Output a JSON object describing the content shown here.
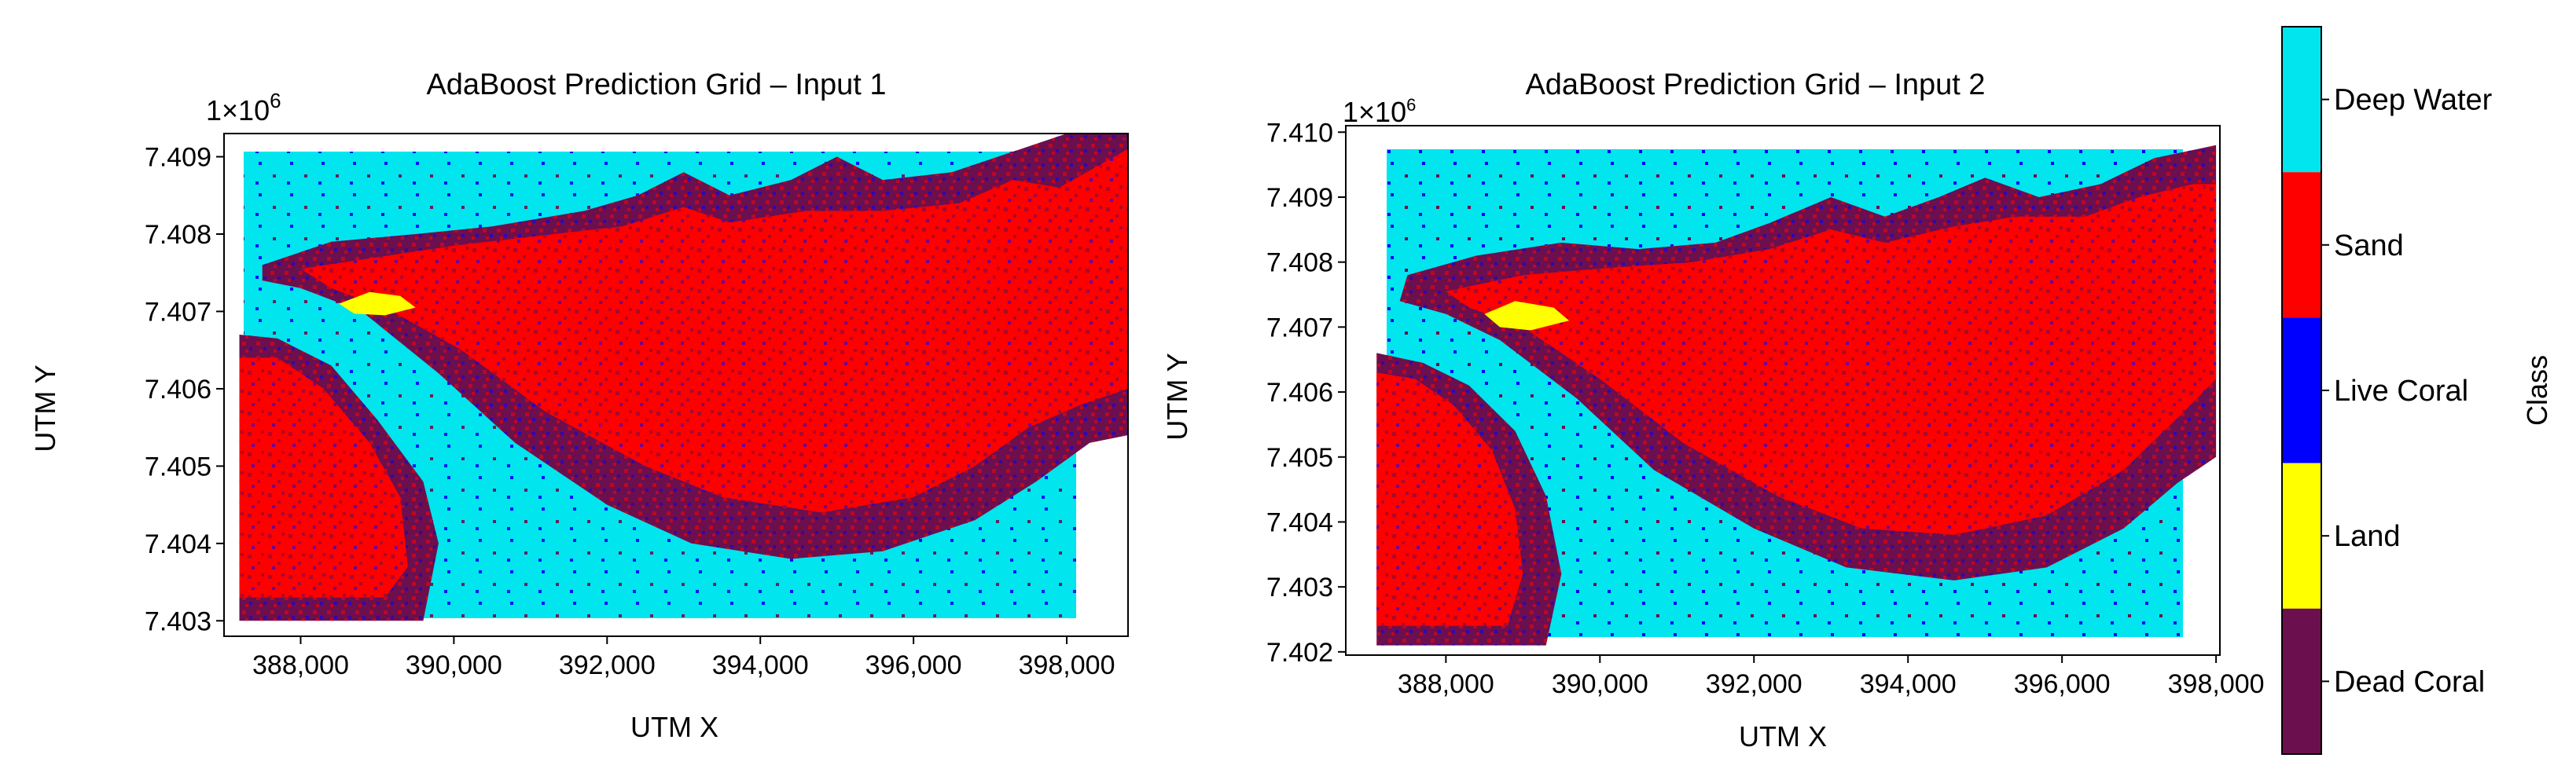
{
  "classes": {
    "labels": [
      "Dead Coral",
      "Land",
      "Live Coral",
      "Sand",
      "Deep Water"
    ],
    "colors": [
      "#6b0f4e",
      "#ffff00",
      "#0000ff",
      "#ff0000",
      "#00e5ee"
    ],
    "colorbar_label": "Class"
  },
  "chart_data": [
    {
      "type": "heatmap",
      "title": "AdaBoost Prediction Grid – Input 1",
      "xlabel": "UTM X",
      "ylabel": "UTM Y",
      "y_offset_text": "1×10",
      "y_offset_exp": "6",
      "xlim": [
        387000,
        398800
      ],
      "ylim": [
        7402.8,
        7409.3
      ],
      "data_extent_x": [
        387200,
        398800
      ],
      "data_extent_y": [
        7403.0,
        7409.4
      ],
      "x_ticks": [
        388000,
        390000,
        392000,
        394000,
        396000,
        398000
      ],
      "x_tick_labels": [
        "388,000",
        "390,000",
        "392,000",
        "394,000",
        "396,000",
        "398,000"
      ],
      "y_ticks": [
        7403,
        7404,
        7405,
        7406,
        7407,
        7408,
        7409
      ],
      "y_tick_labels": [
        "7.403",
        "7.404",
        "7.405",
        "7.406",
        "7.407",
        "7.408",
        "7.409"
      ],
      "background_class": "Deep Water",
      "regions": [
        {
          "class": "Dead Coral",
          "name": "main-reef-rim",
          "outline": [
            [
              387500,
              7407.6
            ],
            [
              388400,
              7407.9
            ],
            [
              389500,
              7408.0
            ],
            [
              390500,
              7408.1
            ],
            [
              391700,
              7408.3
            ],
            [
              392400,
              7408.5
            ],
            [
              393000,
              7408.8
            ],
            [
              393600,
              7408.5
            ],
            [
              394400,
              7408.7
            ],
            [
              395000,
              7409.0
            ],
            [
              395600,
              7408.7
            ],
            [
              396500,
              7408.8
            ],
            [
              397400,
              7409.1
            ],
            [
              398000,
              7409.3
            ],
            [
              398800,
              7409.3
            ],
            [
              398800,
              7405.4
            ],
            [
              398300,
              7405.3
            ],
            [
              397600,
              7404.8
            ],
            [
              396800,
              7404.3
            ],
            [
              395600,
              7403.9
            ],
            [
              394400,
              7403.8
            ],
            [
              393100,
              7404.0
            ],
            [
              392000,
              7404.5
            ],
            [
              390800,
              7405.3
            ],
            [
              389800,
              7406.2
            ],
            [
              388800,
              7407.0
            ],
            [
              388000,
              7407.3
            ],
            [
              387500,
              7407.4
            ]
          ]
        },
        {
          "class": "Sand",
          "name": "main-reef-interior",
          "outline": [
            [
              388000,
              7407.55
            ],
            [
              389000,
              7407.7
            ],
            [
              390000,
              7407.85
            ],
            [
              391300,
              7408.0
            ],
            [
              392200,
              7408.1
            ],
            [
              393000,
              7408.35
            ],
            [
              393600,
              7408.15
            ],
            [
              394600,
              7408.3
            ],
            [
              395600,
              7408.3
            ],
            [
              396600,
              7408.4
            ],
            [
              397300,
              7408.7
            ],
            [
              397900,
              7408.6
            ],
            [
              398800,
              7409.1
            ],
            [
              398800,
              7406.0
            ],
            [
              398200,
              7405.8
            ],
            [
              397500,
              7405.5
            ],
            [
              396800,
              7405.0
            ],
            [
              396000,
              7404.6
            ],
            [
              394800,
              7404.4
            ],
            [
              393500,
              7404.6
            ],
            [
              392500,
              7405.0
            ],
            [
              391200,
              7405.7
            ],
            [
              390100,
              7406.5
            ],
            [
              389200,
              7407.0
            ],
            [
              388400,
              7407.3
            ]
          ]
        },
        {
          "class": "Land",
          "name": "island",
          "outline": [
            [
              388500,
              7407.1
            ],
            [
              388900,
              7407.25
            ],
            [
              389300,
              7407.2
            ],
            [
              389500,
              7407.05
            ],
            [
              389100,
              7406.95
            ],
            [
              388700,
              7406.97
            ]
          ]
        },
        {
          "class": "Dead Coral",
          "name": "southwest-reef-rim",
          "outline": [
            [
              387200,
              7406.7
            ],
            [
              387700,
              7406.65
            ],
            [
              388400,
              7406.3
            ],
            [
              389000,
              7405.6
            ],
            [
              389600,
              7404.8
            ],
            [
              389800,
              7404.0
            ],
            [
              389600,
              7403.0
            ],
            [
              387200,
              7403.0
            ]
          ]
        },
        {
          "class": "Sand",
          "name": "southwest-reef-interior",
          "outline": [
            [
              387200,
              7406.4
            ],
            [
              387700,
              7406.4
            ],
            [
              388300,
              7406.0
            ],
            [
              388900,
              7405.3
            ],
            [
              389300,
              7404.6
            ],
            [
              389400,
              7403.7
            ],
            [
              389100,
              7403.3
            ],
            [
              387200,
              7403.3
            ]
          ]
        }
      ]
    },
    {
      "type": "heatmap",
      "title": "AdaBoost Prediction Grid – Input 2",
      "xlabel": "UTM X",
      "ylabel": "UTM Y",
      "y_offset_text": "1×10",
      "y_offset_exp": "6",
      "xlim": [
        386700,
        398050
      ],
      "ylim": [
        7401.95,
        7410.1
      ],
      "data_extent_x": [
        387100,
        398000
      ],
      "data_extent_y": [
        7402.1,
        7409.9
      ],
      "x_ticks": [
        388000,
        390000,
        392000,
        394000,
        396000,
        398000
      ],
      "x_tick_labels": [
        "388,000",
        "390,000",
        "392,000",
        "394,000",
        "396,000",
        "398,000"
      ],
      "y_ticks": [
        7402,
        7403,
        7404,
        7405,
        7406,
        7407,
        7408,
        7409,
        7410
      ],
      "y_tick_labels": [
        "7.402",
        "7.403",
        "7.404",
        "7.405",
        "7.406",
        "7.407",
        "7.408",
        "7.409",
        "7.410"
      ],
      "background_class": "Deep Water",
      "regions": [
        {
          "class": "Dead Coral",
          "name": "main-reef-rim",
          "outline": [
            [
              387500,
              7407.8
            ],
            [
              388400,
              7408.1
            ],
            [
              389500,
              7408.3
            ],
            [
              390500,
              7408.2
            ],
            [
              391500,
              7408.3
            ],
            [
              392200,
              7408.6
            ],
            [
              393000,
              7409.0
            ],
            [
              393700,
              7408.7
            ],
            [
              394400,
              7409.0
            ],
            [
              395000,
              7409.3
            ],
            [
              395700,
              7409.0
            ],
            [
              396500,
              7409.2
            ],
            [
              397200,
              7409.6
            ],
            [
              398000,
              7409.8
            ],
            [
              398000,
              7405.0
            ],
            [
              397500,
              7404.6
            ],
            [
              396800,
              7403.9
            ],
            [
              395800,
              7403.3
            ],
            [
              394600,
              7403.1
            ],
            [
              393200,
              7403.3
            ],
            [
              392000,
              7403.9
            ],
            [
              390700,
              7404.8
            ],
            [
              389700,
              7405.9
            ],
            [
              388700,
              7406.8
            ],
            [
              388000,
              7407.2
            ],
            [
              387400,
              7407.4
            ]
          ]
        },
        {
          "class": "Sand",
          "name": "main-reef-interior",
          "outline": [
            [
              388000,
              7407.55
            ],
            [
              389000,
              7407.8
            ],
            [
              390000,
              7407.9
            ],
            [
              391200,
              7408.0
            ],
            [
              392200,
              7408.2
            ],
            [
              393000,
              7408.5
            ],
            [
              393700,
              7408.3
            ],
            [
              394600,
              7408.55
            ],
            [
              395400,
              7408.7
            ],
            [
              396300,
              7408.7
            ],
            [
              397000,
              7409.0
            ],
            [
              397700,
              7409.2
            ],
            [
              398000,
              7409.2
            ],
            [
              398000,
              7406.2
            ],
            [
              397500,
              7405.6
            ],
            [
              396800,
              7404.8
            ],
            [
              395800,
              7404.1
            ],
            [
              394600,
              7403.8
            ],
            [
              393400,
              7403.9
            ],
            [
              392300,
              7404.4
            ],
            [
              391100,
              7405.2
            ],
            [
              390000,
              7406.2
            ],
            [
              389000,
              7407.0
            ],
            [
              388300,
              7407.3
            ]
          ]
        },
        {
          "class": "Land",
          "name": "island",
          "outline": [
            [
              388500,
              7407.2
            ],
            [
              388900,
              7407.4
            ],
            [
              389400,
              7407.3
            ],
            [
              389600,
              7407.1
            ],
            [
              389100,
              7406.95
            ],
            [
              388700,
              7407.0
            ]
          ]
        },
        {
          "class": "Dead Coral",
          "name": "southwest-reef-rim",
          "outline": [
            [
              387100,
              7406.6
            ],
            [
              387700,
              7406.45
            ],
            [
              388300,
              7406.1
            ],
            [
              388900,
              7405.4
            ],
            [
              389300,
              7404.4
            ],
            [
              389500,
              7403.2
            ],
            [
              389300,
              7402.1
            ],
            [
              387100,
              7402.1
            ]
          ]
        },
        {
          "class": "Sand",
          "name": "southwest-reef-interior",
          "outline": [
            [
              387100,
              7406.3
            ],
            [
              387600,
              7406.2
            ],
            [
              388100,
              7405.8
            ],
            [
              388600,
              7405.1
            ],
            [
              388900,
              7404.2
            ],
            [
              389000,
              7403.2
            ],
            [
              388800,
              7402.4
            ],
            [
              387100,
              7402.4
            ]
          ]
        }
      ]
    }
  ]
}
